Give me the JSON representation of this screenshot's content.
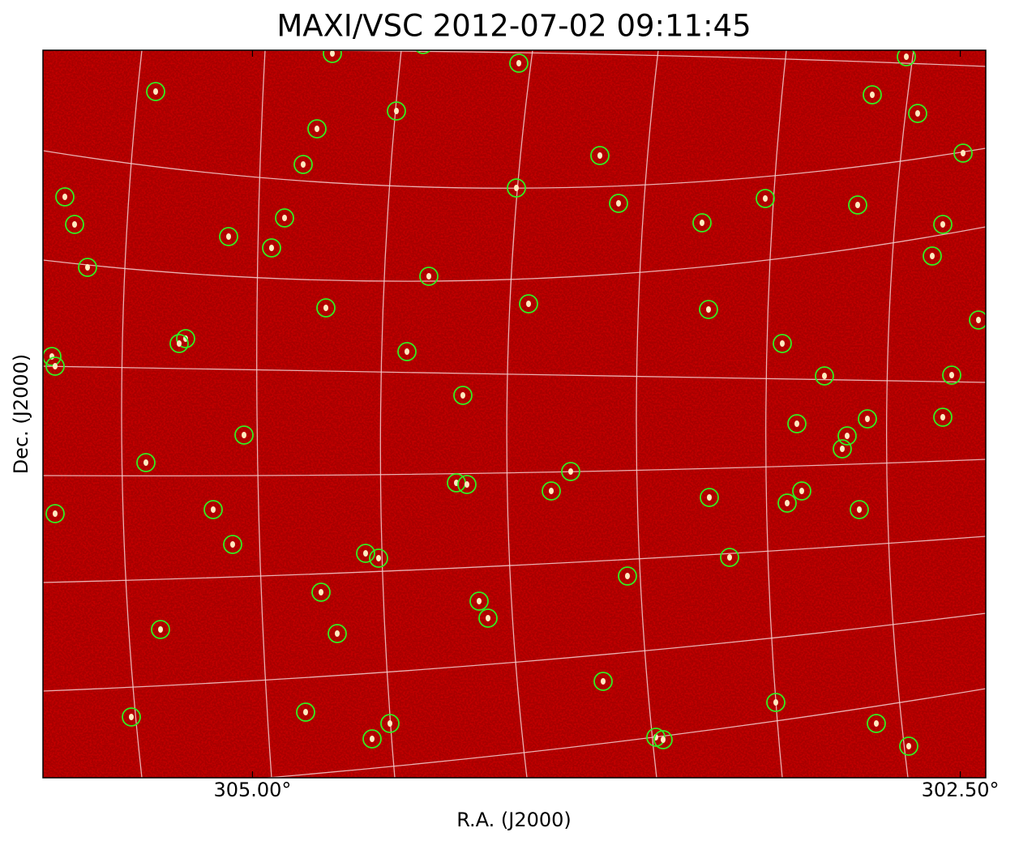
{
  "chart_data": {
    "type": "image",
    "title": "MAXI/VSC 2012-07-02 09:11:45",
    "xlabel": "R.A. (J2000)",
    "ylabel": "Dec. (J2000)",
    "xlim": [
      305.74,
      302.41
    ],
    "xticks": [
      {
        "value": 305.0,
        "label": "305.00°"
      },
      {
        "value": 302.5,
        "label": "302.50°"
      }
    ],
    "grid": true
  }
}
